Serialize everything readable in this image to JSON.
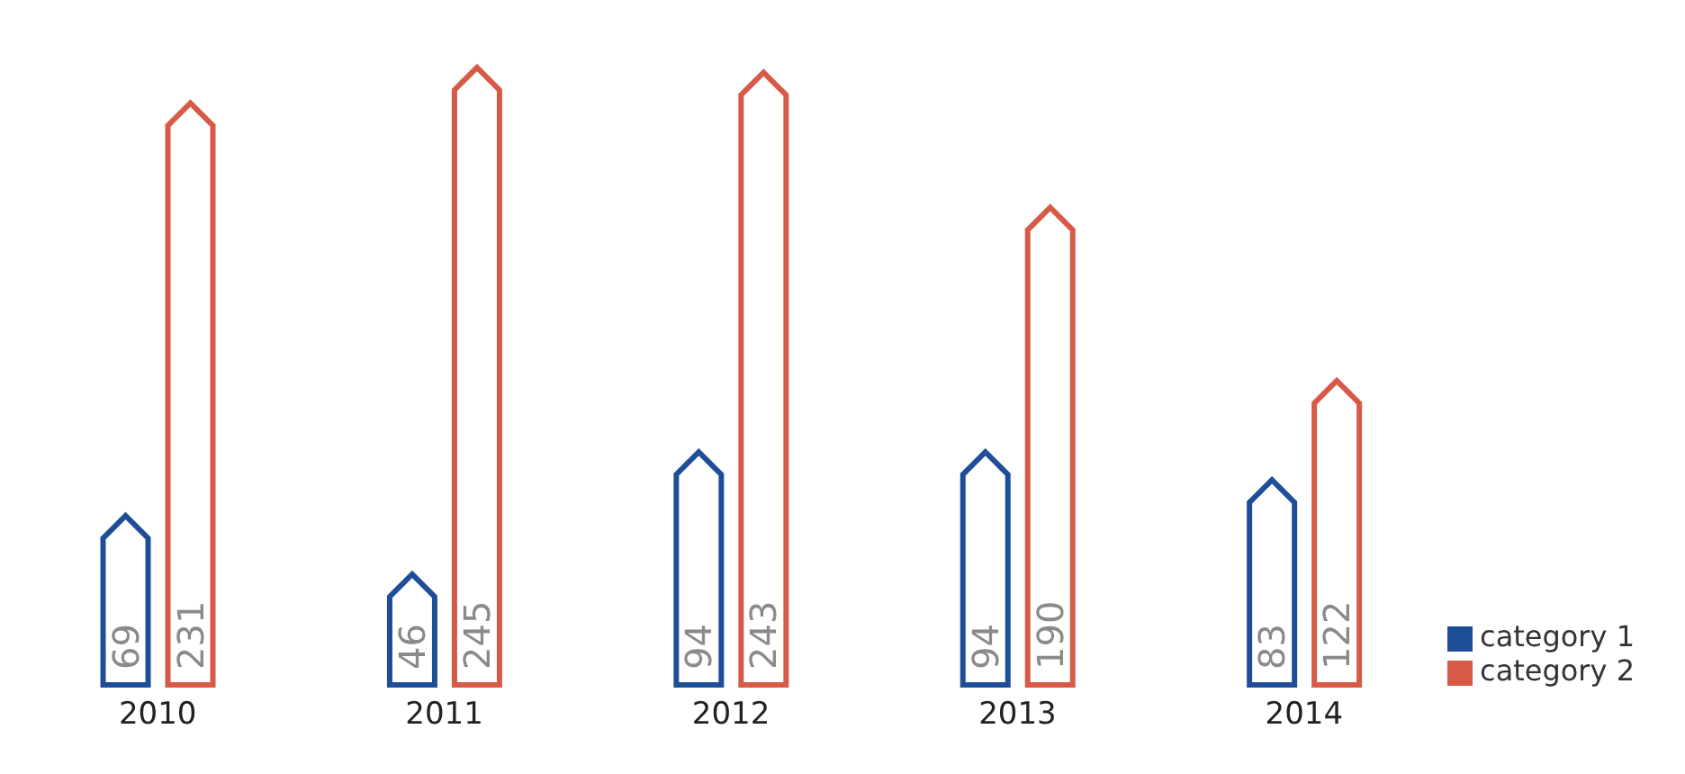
{
  "chart_data": {
    "type": "bar",
    "categories": [
      "2010",
      "2011",
      "2012",
      "2013",
      "2014"
    ],
    "series": [
      {
        "name": "category 1",
        "color": "#1f4e99",
        "values": [
          69,
          46,
          94,
          94,
          83
        ]
      },
      {
        "name": "category 2",
        "color": "#d65a45",
        "values": [
          231,
          245,
          243,
          190,
          122
        ]
      }
    ],
    "data_labels": true,
    "legend": "bottom right"
  }
}
